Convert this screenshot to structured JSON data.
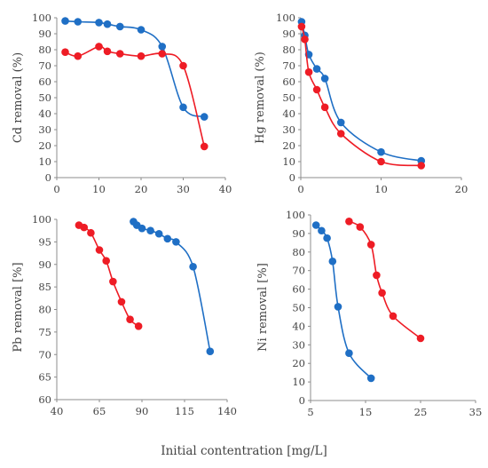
{
  "global_xlabel": "Initial contentration [mg/L]",
  "colors": {
    "series_1": "#1f6fc5",
    "series_2": "#ee1c25",
    "axis": "#8c8c8c",
    "text": "#444444"
  },
  "chart_data": [
    {
      "type": "line",
      "ylabel": "Cd removal (%)",
      "xlim": [
        0,
        40
      ],
      "ylim": [
        0,
        100
      ],
      "xticks": [
        0,
        10,
        20,
        30,
        40
      ],
      "yticks": [
        0,
        10,
        20,
        30,
        40,
        50,
        60,
        70,
        80,
        90,
        100
      ],
      "grid": false,
      "series": [
        {
          "color": "#1f6fc5",
          "x": [
            2,
            5,
            10,
            12,
            15,
            20,
            25,
            30,
            35
          ],
          "y": [
            98,
            97.5,
            97,
            96,
            94.5,
            92.5,
            82,
            44,
            38
          ]
        },
        {
          "color": "#ee1c25",
          "x": [
            2,
            5,
            10,
            12,
            15,
            20,
            25,
            30,
            35
          ],
          "y": [
            78.5,
            76,
            82,
            79,
            77.5,
            76,
            77.5,
            70,
            19.5
          ]
        }
      ]
    },
    {
      "type": "line",
      "ylabel": "Hg removal (%)",
      "xlim": [
        0,
        20
      ],
      "ylim": [
        0,
        100
      ],
      "xticks": [
        0,
        10,
        20
      ],
      "yticks": [
        0,
        10,
        20,
        30,
        40,
        50,
        60,
        70,
        80,
        90,
        100
      ],
      "grid": false,
      "series": [
        {
          "color": "#1f6fc5",
          "x": [
            0.1,
            0.5,
            1,
            2,
            3,
            5,
            10,
            15
          ],
          "y": [
            97.5,
            89,
            77,
            68,
            62,
            34.5,
            16,
            10.5
          ]
        },
        {
          "color": "#ee1c25",
          "x": [
            0.1,
            0.5,
            1,
            2,
            3,
            5,
            10,
            15
          ],
          "y": [
            94.5,
            86.5,
            66,
            55,
            44,
            27.5,
            10,
            7.5
          ]
        }
      ]
    },
    {
      "type": "line",
      "ylabel": "Pb removal [%]",
      "xlim": [
        40,
        140
      ],
      "ylim": [
        60,
        100
      ],
      "xticks": [
        40,
        65,
        90,
        115,
        140
      ],
      "yticks": [
        60,
        65,
        70,
        75,
        80,
        85,
        90,
        95,
        100
      ],
      "grid": false,
      "series": [
        {
          "color": "#1f6fc5",
          "x": [
            85,
            87,
            90,
            95,
            100,
            105,
            110,
            120,
            130
          ],
          "y": [
            99.5,
            98.7,
            98,
            97.5,
            96.8,
            95.7,
            95,
            89.5,
            70.7
          ]
        },
        {
          "color": "#ee1c25",
          "x": [
            53,
            56,
            60,
            65,
            69,
            73,
            78,
            83,
            88
          ],
          "y": [
            98.7,
            98.2,
            97,
            93.2,
            90.8,
            86.2,
            81.7,
            77.8,
            76.3
          ]
        }
      ]
    },
    {
      "type": "line",
      "ylabel": "Ni removal [%]",
      "xlim": [
        5,
        35
      ],
      "ylim": [
        0,
        100
      ],
      "xticks": [
        5,
        15,
        25,
        35
      ],
      "yticks": [
        0,
        10,
        20,
        30,
        40,
        50,
        60,
        70,
        80,
        90,
        100
      ],
      "grid": false,
      "series": [
        {
          "color": "#1f6fc5",
          "x": [
            6,
            7,
            8,
            9,
            10,
            12,
            16
          ],
          "y": [
            94.5,
            91.5,
            87.5,
            75,
            50.5,
            25.5,
            12
          ]
        },
        {
          "color": "#ee1c25",
          "x": [
            12,
            14,
            16,
            17,
            18,
            20,
            25
          ],
          "y": [
            96.5,
            93.5,
            84,
            67.5,
            58,
            45.5,
            33.5
          ]
        }
      ]
    }
  ]
}
